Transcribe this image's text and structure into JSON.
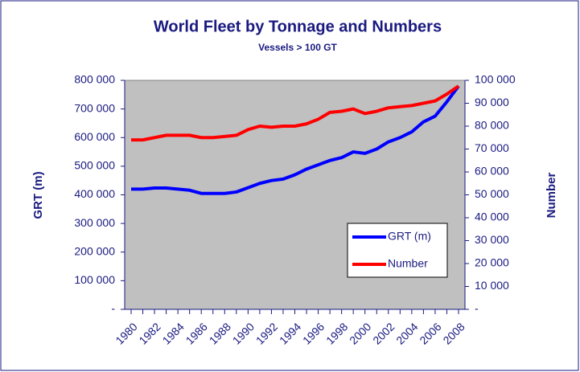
{
  "chart_data": {
    "type": "line",
    "title": "World Fleet by Tonnage and Numbers",
    "subtitle": "Vessels > 100 GT",
    "y_label": "GRT (m)",
    "y2_label": "Number",
    "categories": [
      "1980",
      null,
      "1982",
      null,
      "1984",
      null,
      "1986",
      null,
      "1988",
      null,
      "1990",
      null,
      "1992",
      null,
      "1994",
      null,
      "1996",
      null,
      "1998",
      null,
      "2000",
      null,
      "2002",
      null,
      "2004",
      null,
      "2006",
      null,
      "2008"
    ],
    "series": [
      {
        "name": "GRT (m)",
        "color": "#0000ff",
        "axis": "y",
        "values": [
          420000,
          420000,
          424000,
          424000,
          420000,
          416000,
          405000,
          405000,
          405000,
          410000,
          425000,
          440000,
          450000,
          455000,
          470000,
          490000,
          505000,
          520000,
          530000,
          550000,
          545000,
          560000,
          585000,
          600000,
          620000,
          655000,
          675000,
          725000,
          780000
        ]
      },
      {
        "name": "Number",
        "color": "#ff0000",
        "axis": "y2",
        "values": [
          74000,
          74000,
          75000,
          76000,
          76000,
          76000,
          75000,
          75000,
          75500,
          76000,
          78500,
          80000,
          79500,
          80000,
          80000,
          81000,
          83000,
          86000,
          86500,
          87500,
          85500,
          86500,
          88000,
          88500,
          89000,
          90000,
          91000,
          94000,
          97500
        ]
      }
    ],
    "ylim": [
      0,
      800000
    ],
    "yticks": [
      {
        "value": 0,
        "label": "-"
      },
      {
        "value": 100000,
        "label": "100 000"
      },
      {
        "value": 200000,
        "label": "200 000"
      },
      {
        "value": 300000,
        "label": "300 000"
      },
      {
        "value": 400000,
        "label": "400 000"
      },
      {
        "value": 500000,
        "label": "500 000"
      },
      {
        "value": 600000,
        "label": "600 000"
      },
      {
        "value": 700000,
        "label": "700 000"
      },
      {
        "value": 800000,
        "label": "800 000"
      }
    ],
    "y2lim": [
      0,
      100000
    ],
    "y2ticks": [
      {
        "value": 0,
        "label": "-"
      },
      {
        "value": 10000,
        "label": "10 000"
      },
      {
        "value": 20000,
        "label": "20 000"
      },
      {
        "value": 30000,
        "label": "30 000"
      },
      {
        "value": 40000,
        "label": "40 000"
      },
      {
        "value": 50000,
        "label": "50 000"
      },
      {
        "value": 60000,
        "label": "60 000"
      },
      {
        "value": 70000,
        "label": "70 000"
      },
      {
        "value": 80000,
        "label": "80 000"
      },
      {
        "value": 90000,
        "label": "90 000"
      },
      {
        "value": 100000,
        "label": "100 000"
      }
    ],
    "legend": "lower right",
    "plot_background": "#c0c0c0"
  }
}
